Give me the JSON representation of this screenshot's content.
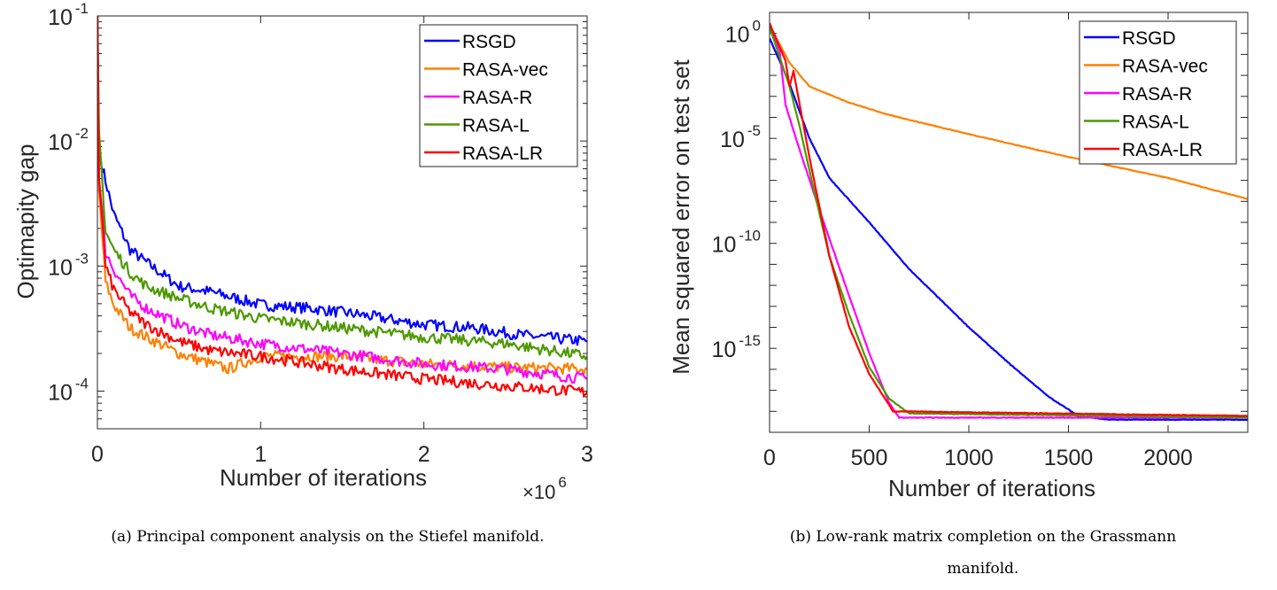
{
  "chart_data": [
    {
      "type": "line",
      "xlabel": "Number of iterations",
      "x_multiplier_label": "×10",
      "x_multiplier_exp": "6",
      "ylabel": "Optimapity gap",
      "xlim": [
        0,
        3
      ],
      "ylim": [
        5e-05,
        0.1
      ],
      "yscale": "log",
      "xticks": [
        "0",
        "1",
        "2",
        "3"
      ],
      "yticks": [
        {
          "base": "10",
          "exp": "-1",
          "value": 0.1
        },
        {
          "base": "10",
          "exp": "-2",
          "value": 0.01
        },
        {
          "base": "10",
          "exp": "-3",
          "value": 0.001
        },
        {
          "base": "10",
          "exp": "-4",
          "value": 0.0001
        }
      ],
      "grid": false,
      "legend": "top-right",
      "caption": "(a) Principal component analysis on the Stiefel manifold.",
      "series": [
        {
          "name": "RSGD",
          "color": "#0000ff",
          "x": [
            0,
            0.01,
            0.05,
            0.1,
            0.2,
            0.3,
            0.5,
            0.7,
            1.0,
            1.3,
            1.6,
            2.0,
            2.3,
            2.6,
            3.0
          ],
          "y": [
            0.1,
            0.008,
            0.0048,
            0.0026,
            0.00135,
            0.00107,
            0.00069,
            0.00062,
            0.00049,
            0.00046,
            0.00041,
            0.00034,
            0.00032,
            0.00028,
            0.00025
          ]
        },
        {
          "name": "RASA-vec",
          "color": "#ff8000",
          "x": [
            0,
            0.01,
            0.05,
            0.1,
            0.2,
            0.3,
            0.5,
            0.7,
            0.8,
            1.0,
            1.5,
            2.0,
            2.5,
            3.0
          ],
          "y": [
            0.1,
            0.004,
            0.00074,
            0.00049,
            0.00032,
            0.00027,
            0.0002,
            0.000165,
            0.00015,
            0.00019,
            0.00019,
            0.000165,
            0.000155,
            0.00015
          ]
        },
        {
          "name": "RASA-R",
          "color": "#ff00ff",
          "x": [
            0,
            0.01,
            0.05,
            0.1,
            0.2,
            0.3,
            0.5,
            0.7,
            1.0,
            1.5,
            2.0,
            2.5,
            3.0
          ],
          "y": [
            0.1,
            0.005,
            0.0013,
            0.00094,
            0.00058,
            0.00046,
            0.00034,
            0.00028,
            0.00024,
            0.0002,
            0.000165,
            0.00015,
            0.000125
          ]
        },
        {
          "name": "RASA-L",
          "color": "#4d9900",
          "x": [
            0,
            0.01,
            0.05,
            0.1,
            0.2,
            0.3,
            0.5,
            0.7,
            1.0,
            1.5,
            2.0,
            2.5,
            3.0
          ],
          "y": [
            0.1,
            0.012,
            0.0019,
            0.00135,
            0.00089,
            0.00069,
            0.00055,
            0.00046,
            0.00038,
            0.00032,
            0.00027,
            0.00024,
            0.00019
          ]
        },
        {
          "name": "RASA-LR",
          "color": "#ff0000",
          "x": [
            0,
            0.01,
            0.05,
            0.1,
            0.2,
            0.3,
            0.5,
            0.7,
            1.0,
            1.5,
            2.0,
            2.5,
            3.0
          ],
          "y": [
            0.1,
            0.005,
            0.001,
            0.00065,
            0.00043,
            0.00034,
            0.00025,
            0.00021,
            0.00019,
            0.00015,
            0.000125,
            0.00011,
            9.8e-05
          ]
        }
      ]
    },
    {
      "type": "line",
      "xlabel": "Number of iterations",
      "ylabel": "Mean squared error on test set",
      "xlim": [
        0,
        2400
      ],
      "ylim": [
        1e-19,
        10
      ],
      "yscale": "log",
      "xticks": [
        "0",
        "500",
        "1000",
        "1500",
        "2000"
      ],
      "yticks": [
        {
          "base": "10",
          "exp": "0",
          "value": 1
        },
        {
          "base": "10",
          "exp": "-5",
          "value": 1e-05
        },
        {
          "base": "10",
          "exp": "-10",
          "value": 1e-10
        },
        {
          "base": "10",
          "exp": "-15",
          "value": 1e-15
        }
      ],
      "grid": false,
      "legend": "top-right",
      "caption": "(b) Low-rank matrix completion on the Grassmann manifold.",
      "series": [
        {
          "name": "RSGD",
          "color": "#0000ff",
          "x": [
            0,
            50,
            100,
            200,
            300,
            500,
            700,
            1000,
            1200,
            1400,
            1550,
            1700,
            2400
          ],
          "y": [
            0.6,
            0.05,
            0.004,
            1e-05,
            1.3e-07,
            1e-09,
            6e-12,
            1e-14,
            2e-16,
            5e-18,
            6e-19,
            4e-19,
            4e-19
          ]
        },
        {
          "name": "RASA-vec",
          "color": "#ff8000",
          "x": [
            0,
            100,
            200,
            400,
            600,
            1000,
            1500,
            2000,
            2400
          ],
          "y": [
            2.5,
            0.04,
            0.003,
            0.0005,
            0.00013,
            1.6e-05,
            1.3e-06,
            1.3e-07,
            1.3e-08
          ]
        },
        {
          "name": "RASA-R",
          "color": "#ff00ff",
          "x": [
            0,
            50,
            80,
            150,
            250,
            400,
            500,
            600,
            650,
            2400
          ],
          "y": [
            2.5,
            0.16,
            0.0004,
            3e-06,
            4e-09,
            3e-13,
            6e-16,
            2.5e-18,
            5e-19,
            5e-19
          ]
        },
        {
          "name": "RASA-L",
          "color": "#4d9900",
          "x": [
            0,
            100,
            150,
            200,
            300,
            400,
            500,
            600,
            700,
            2400
          ],
          "y": [
            2.0,
            0.003,
            4e-05,
            3e-07,
            2.5e-11,
            4e-14,
            1.3e-16,
            4e-18,
            8e-19,
            5e-19
          ]
        },
        {
          "name": "RASA-LR",
          "color": "#ff0000",
          "x": [
            0,
            80,
            100,
            120,
            200,
            300,
            400,
            500,
            620,
            2400
          ],
          "y": [
            3.0,
            0.05,
            0.003,
            0.016,
            1.3e-06,
            2.5e-11,
            1e-14,
            6e-17,
            1e-18,
            6e-19
          ]
        }
      ]
    }
  ]
}
